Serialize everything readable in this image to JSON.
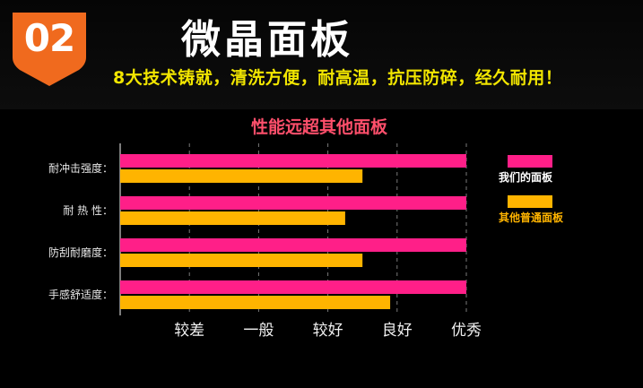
{
  "badge": {
    "number": "02"
  },
  "header": {
    "title": "微晶面板",
    "subtitle": "8大技术铸就，清洗方便，耐高温，抗压防碎，经久耐用！"
  },
  "colors": {
    "badge": "#f06a1e",
    "ours": "#ff1f88",
    "others": "#ffb400",
    "chart_title": "#ff4f6b",
    "subtitle": "#f2e600"
  },
  "chart_data": {
    "type": "bar",
    "orientation": "horizontal",
    "title": "性能远超其他面板",
    "categories": [
      "耐冲击强度：",
      "耐 热 性：",
      "防刮耐磨度：",
      "手感舒适度："
    ],
    "scale_ticks": [
      "较差",
      "一般",
      "较好",
      "良好",
      "优秀"
    ],
    "xlim": [
      0,
      5
    ],
    "grid": true,
    "legend_position": "right",
    "series": [
      {
        "name": "我们的面板",
        "values": [
          5,
          5,
          5,
          5
        ]
      },
      {
        "name": "其他普通面板",
        "values": [
          3.5,
          3.25,
          3.5,
          3.9
        ]
      }
    ]
  }
}
